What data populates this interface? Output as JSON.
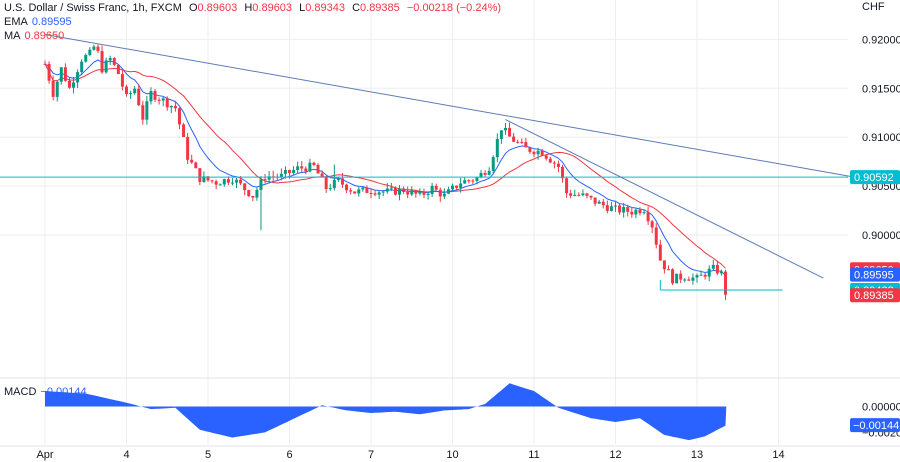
{
  "header": {
    "symbol_title": "U.S. Dollar / Swiss Franc, 1h, FXCM",
    "open_label": "O",
    "open": "0.89603",
    "high_label": "H",
    "high": "0.89603",
    "low_label": "L",
    "low": "0.89343",
    "close_label": "C",
    "close": "0.89385",
    "change": "−0.00218 (−0.24%)",
    "ema_label": "EMA",
    "ema_value": "0.89595",
    "ma_label": "MA",
    "ma_value": "0.89650",
    "macd_label": "MACD",
    "macd_value": "−0.00144"
  },
  "colors": {
    "up": "#089981",
    "down": "#f23645",
    "ema": "#2962ff",
    "ma": "#f23645",
    "macd_fill": "#2962ff",
    "trendline": "#5b7cb3",
    "support": "#00bcd4",
    "grid": "#eeeeee"
  },
  "chart_data": {
    "type": "candlestick",
    "price_axis": {
      "unit": "CHF",
      "ylim": [
        0.886,
        0.923
      ],
      "ticks": [
        "0.92000",
        "0.91500",
        "0.91000",
        "0.90500",
        "0.90000"
      ],
      "tick_values": [
        0.92,
        0.915,
        0.91,
        0.905,
        0.9
      ]
    },
    "time_axis": {
      "labels": [
        "Apr",
        "4",
        "5",
        "6",
        "7",
        "10",
        "11",
        "12",
        "13",
        "14"
      ],
      "label_x": [
        0,
        1,
        2,
        3,
        4,
        5,
        6,
        7,
        8,
        9
      ]
    },
    "price_labels": [
      {
        "text": "0.90592",
        "value": 0.90592,
        "color": "#00bcd4"
      },
      {
        "text": "0.89650",
        "value": 0.8965,
        "color": "#f23645"
      },
      {
        "text": "0.89595",
        "value": 0.89595,
        "color": "#2962ff"
      },
      {
        "text": "0.89438",
        "value": 0.89438,
        "color": "#00bcd4"
      },
      {
        "text": "0.89385",
        "value": 0.89385,
        "color": "#f23645"
      }
    ],
    "anchors": [
      [
        0.0,
        0.9175
      ],
      [
        0.1,
        0.9145
      ],
      [
        0.2,
        0.917
      ],
      [
        0.3,
        0.915
      ],
      [
        0.45,
        0.918
      ],
      [
        0.55,
        0.9185
      ],
      [
        0.62,
        0.9195
      ],
      [
        0.7,
        0.917
      ],
      [
        0.8,
        0.918
      ],
      [
        0.9,
        0.9165
      ],
      [
        1.0,
        0.914
      ],
      [
        1.1,
        0.915
      ],
      [
        1.2,
        0.912
      ],
      [
        1.3,
        0.9145
      ],
      [
        1.4,
        0.914
      ],
      [
        1.6,
        0.913
      ],
      [
        1.75,
        0.908
      ],
      [
        1.9,
        0.9058
      ],
      [
        2.1,
        0.9054
      ],
      [
        2.3,
        0.9058
      ],
      [
        2.55,
        0.904
      ],
      [
        2.7,
        0.906
      ],
      [
        2.9,
        0.906
      ],
      [
        3.1,
        0.9068
      ],
      [
        3.3,
        0.907
      ],
      [
        3.45,
        0.9048
      ],
      [
        3.6,
        0.9055
      ],
      [
        3.8,
        0.9044
      ],
      [
        4.0,
        0.9046
      ],
      [
        4.2,
        0.9044
      ],
      [
        4.4,
        0.9046
      ],
      [
        4.6,
        0.904
      ],
      [
        4.75,
        0.9048
      ],
      [
        4.9,
        0.904
      ],
      [
        5.1,
        0.9054
      ],
      [
        5.3,
        0.9058
      ],
      [
        5.45,
        0.907
      ],
      [
        5.6,
        0.911
      ],
      [
        5.7,
        0.91
      ],
      [
        5.9,
        0.9088
      ],
      [
        6.1,
        0.9085
      ],
      [
        6.3,
        0.907
      ],
      [
        6.4,
        0.9043
      ],
      [
        6.6,
        0.904
      ],
      [
        6.8,
        0.9032
      ],
      [
        7.0,
        0.9026
      ],
      [
        7.2,
        0.9024
      ],
      [
        7.35,
        0.9027
      ],
      [
        7.45,
        0.901
      ],
      [
        7.55,
        0.8975
      ],
      [
        7.7,
        0.8955
      ],
      [
        7.85,
        0.8958
      ],
      [
        8.0,
        0.8955
      ],
      [
        8.12,
        0.8962
      ],
      [
        8.22,
        0.8966
      ],
      [
        8.3,
        0.896
      ],
      [
        8.36,
        0.8939
      ]
    ],
    "spikes": [
      [
        2.65,
        0.9005
      ],
      [
        5.85,
        0.9093
      ],
      [
        3.55,
        0.9072
      ]
    ],
    "trendlines": [
      {
        "from": [
          0.0,
          0.9205
        ],
        "to": [
          9.88,
          0.906
        ]
      },
      {
        "from": [
          5.65,
          0.9118
        ],
        "to": [
          9.55,
          0.8956
        ]
      }
    ],
    "support_level": 0.90592,
    "low_marker": {
      "from": [
        7.55,
        0.89438
      ],
      "to": [
        9.05,
        0.89438
      ]
    },
    "ema": {
      "value": 0.89595
    },
    "ma": {
      "value": 0.8965
    },
    "macd": {
      "ylim": [
        -0.0029,
        0.0019
      ],
      "ticks": [
        "0.00000",
        "−0.00144",
        "−0.00200"
      ],
      "tick_values": [
        0.0,
        -0.00144,
        -0.002
      ],
      "anchors": [
        [
          0.0,
          0.0012
        ],
        [
          0.5,
          0.001
        ],
        [
          1.0,
          0.0003
        ],
        [
          1.3,
          -0.0002
        ],
        [
          1.6,
          -0.0001
        ],
        [
          1.9,
          -0.0018
        ],
        [
          2.3,
          -0.0024
        ],
        [
          2.7,
          -0.002
        ],
        [
          3.0,
          -0.0011
        ],
        [
          3.4,
          0.0001
        ],
        [
          3.7,
          -0.0003
        ],
        [
          4.0,
          -0.0005
        ],
        [
          4.3,
          -0.0004
        ],
        [
          4.6,
          -0.0006
        ],
        [
          4.9,
          -0.0003
        ],
        [
          5.2,
          -0.0002
        ],
        [
          5.4,
          0.0002
        ],
        [
          5.7,
          0.0018
        ],
        [
          6.0,
          0.0012
        ],
        [
          6.3,
          -0.0001
        ],
        [
          6.7,
          -0.0009
        ],
        [
          7.0,
          -0.0012
        ],
        [
          7.3,
          -0.0009
        ],
        [
          7.6,
          -0.0022
        ],
        [
          7.9,
          -0.0026
        ],
        [
          8.1,
          -0.0023
        ],
        [
          8.36,
          -0.00144
        ]
      ]
    }
  }
}
